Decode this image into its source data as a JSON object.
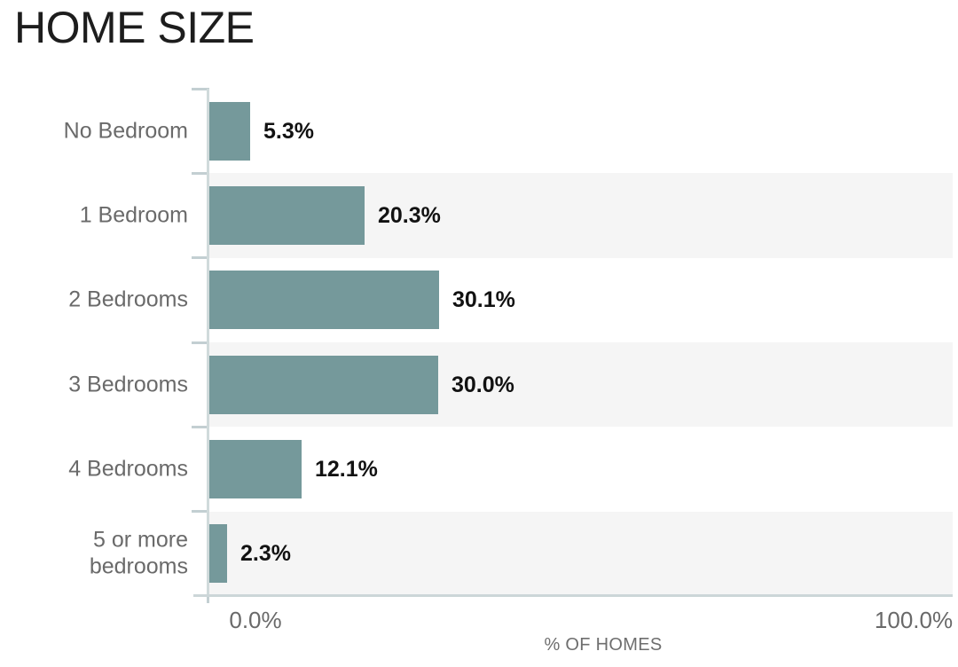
{
  "chart_data": {
    "type": "bar",
    "orientation": "horizontal",
    "title": "HOME SIZE",
    "xlabel": "% OF HOMES",
    "categories": [
      "No Bedroom",
      "1 Bedroom",
      "2 Bedrooms",
      "3 Bedrooms",
      "4 Bedrooms",
      "5 or more bedrooms"
    ],
    "category_lines": [
      [
        "No Bedroom"
      ],
      [
        "1 Bedroom"
      ],
      [
        "2 Bedrooms"
      ],
      [
        "3 Bedrooms"
      ],
      [
        "4 Bedrooms"
      ],
      [
        "5 or more",
        "bedrooms"
      ]
    ],
    "values": [
      5.3,
      20.3,
      30.1,
      30.0,
      12.1,
      2.3
    ],
    "value_labels": [
      "5.3%",
      "20.3%",
      "30.1%",
      "30.0%",
      "12.1%",
      "2.3%"
    ],
    "xlim": [
      0,
      100
    ],
    "x_tick_labels": [
      "0.0%",
      "100.0%"
    ],
    "legend": null,
    "grid": false,
    "banded_rows": true
  },
  "colors": {
    "bar": "#75999b",
    "band": "#f5f5f5",
    "axis_line": "#ccd6d8",
    "tick_mark": "#c3cfd2",
    "title_text": "#1d1d1d",
    "category_text": "#6a6a6a",
    "value_text": "#121212",
    "tick_label_text": "#696969"
  }
}
